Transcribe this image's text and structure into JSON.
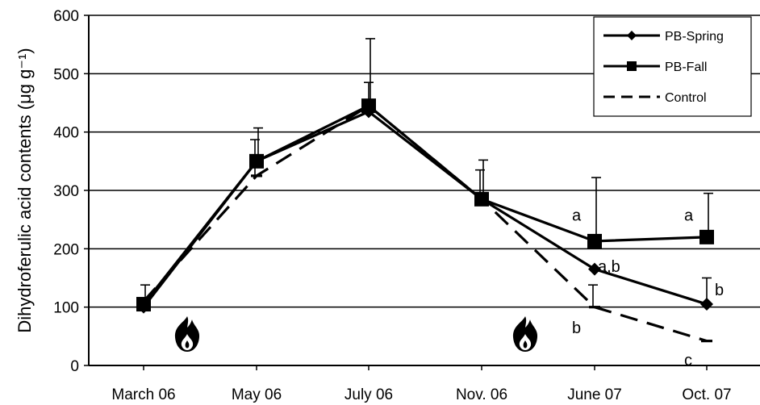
{
  "chart_data": {
    "type": "line",
    "title": "",
    "xlabel": "",
    "ylabel": "Dihydroferulic acid contents (μg g⁻¹)",
    "ylim": [
      0,
      600
    ],
    "yticks": [
      0,
      100,
      200,
      300,
      400,
      500,
      600
    ],
    "grid": true,
    "legend_position": "top-right",
    "categories": [
      "March 06",
      "May 06",
      "July 06",
      "Nov. 06",
      "June 07",
      "Oct. 07"
    ],
    "series": [
      {
        "name": "PB-Spring",
        "marker": "diamond",
        "line": "solid",
        "values": [
          100,
          350,
          435,
          285,
          165,
          105
        ],
        "error_upper": [
          null,
          null,
          485,
          null,
          null,
          150
        ]
      },
      {
        "name": "PB-Fall",
        "marker": "square",
        "line": "solid",
        "values": [
          105,
          350,
          445,
          285,
          213,
          220
        ],
        "error_upper": [
          138,
          407,
          560,
          352,
          322,
          295
        ]
      },
      {
        "name": "Control",
        "marker": "dash",
        "line": "dashed",
        "values": [
          110,
          325,
          445,
          285,
          100,
          42
        ],
        "error_upper": [
          null,
          387,
          null,
          335,
          138,
          null
        ]
      }
    ],
    "annotations": [
      {
        "text": "a",
        "category": "June 07",
        "y": 258
      },
      {
        "text": "a,b",
        "category": "June 07",
        "y": 170
      },
      {
        "text": "b",
        "category": "June 07",
        "y": 65
      },
      {
        "text": "a",
        "category": "Oct. 07",
        "y": 258
      },
      {
        "text": "b",
        "category": "Oct. 07",
        "y": 130
      },
      {
        "text": "c",
        "category": "Oct. 07",
        "y": 10
      }
    ],
    "icons": [
      {
        "name": "fire-icon",
        "category": "March 06"
      },
      {
        "name": "fire-icon",
        "category": "Nov. 06"
      }
    ]
  }
}
